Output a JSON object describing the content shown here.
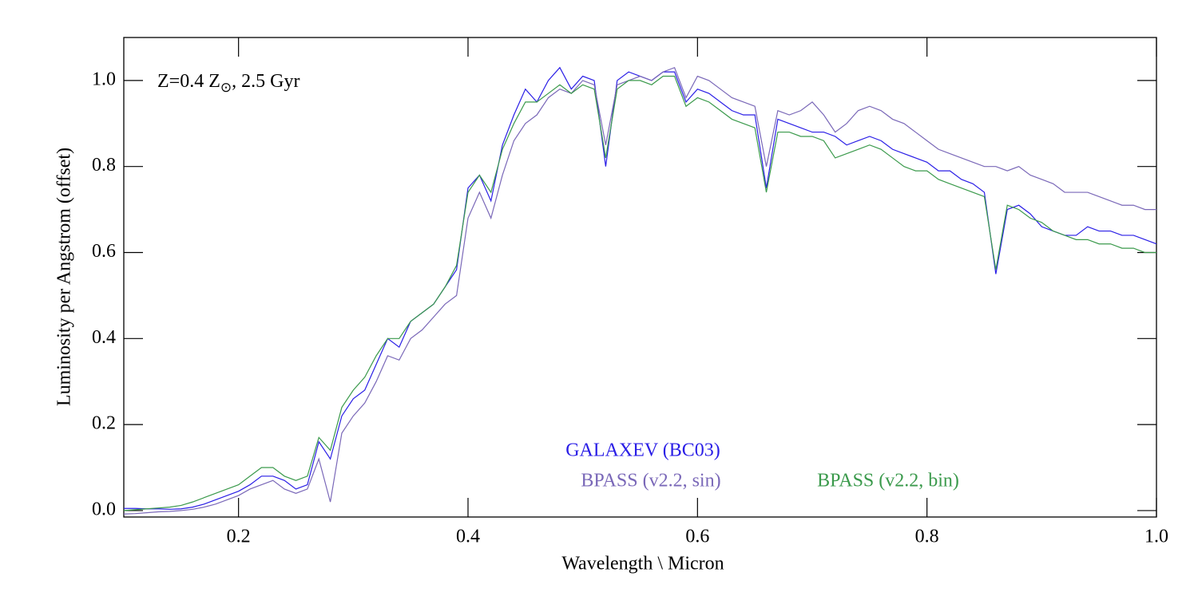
{
  "chart_data": {
    "type": "line",
    "annotation": {
      "main": "Z=0.4 Z",
      "sub": "⊙",
      "rest": ",  2.5 Gyr"
    },
    "xlabel": "Wavelength \\ Micron",
    "ylabel": "Luminosity per Angstrom (offset)",
    "xlim": [
      0.1,
      1.0
    ],
    "ylim": [
      -0.015,
      1.1
    ],
    "xticks": [
      0.2,
      0.4,
      0.6,
      0.8,
      {
        "value": 1.0,
        "label": "1.0"
      }
    ],
    "yticks": [
      {
        "value": 0,
        "label": "0.0"
      },
      0.2,
      0.4,
      0.6,
      0.8,
      {
        "value": 1.0,
        "label": "1.0"
      }
    ],
    "x": [
      0.1,
      0.11,
      0.12,
      0.13,
      0.14,
      0.15,
      0.16,
      0.17,
      0.18,
      0.19,
      0.2,
      0.21,
      0.22,
      0.23,
      0.24,
      0.25,
      0.26,
      0.27,
      0.28,
      0.29,
      0.3,
      0.31,
      0.32,
      0.33,
      0.34,
      0.35,
      0.36,
      0.37,
      0.38,
      0.39,
      0.4,
      0.41,
      0.42,
      0.43,
      0.44,
      0.45,
      0.46,
      0.47,
      0.48,
      0.49,
      0.5,
      0.51,
      0.52,
      0.53,
      0.54,
      0.55,
      0.56,
      0.57,
      0.58,
      0.59,
      0.6,
      0.61,
      0.62,
      0.63,
      0.64,
      0.65,
      0.66,
      0.67,
      0.68,
      0.69,
      0.7,
      0.71,
      0.72,
      0.73,
      0.74,
      0.75,
      0.76,
      0.77,
      0.78,
      0.79,
      0.8,
      0.81,
      0.82,
      0.83,
      0.84,
      0.85,
      0.86,
      0.87,
      0.88,
      0.89,
      0.9,
      0.91,
      0.92,
      0.93,
      0.94,
      0.95,
      0.96,
      0.97,
      0.98,
      0.99,
      1.0
    ],
    "series": [
      {
        "name": "GALAXEV (BC03)",
        "color": "#2a1ee6",
        "values": [
          0.005,
          0.005,
          0.004,
          0.004,
          0.003,
          0.004,
          0.008,
          0.015,
          0.025,
          0.035,
          0.045,
          0.06,
          0.08,
          0.08,
          0.07,
          0.05,
          0.06,
          0.16,
          0.12,
          0.22,
          0.26,
          0.28,
          0.34,
          0.4,
          0.38,
          0.44,
          0.46,
          0.48,
          0.52,
          0.56,
          0.75,
          0.78,
          0.72,
          0.85,
          0.92,
          0.98,
          0.95,
          1.0,
          1.03,
          0.98,
          1.01,
          1.0,
          0.8,
          1.0,
          1.02,
          1.01,
          1.0,
          1.02,
          1.02,
          0.95,
          0.98,
          0.97,
          0.95,
          0.93,
          0.92,
          0.92,
          0.75,
          0.91,
          0.9,
          0.89,
          0.88,
          0.88,
          0.87,
          0.85,
          0.86,
          0.87,
          0.86,
          0.84,
          0.83,
          0.82,
          0.81,
          0.79,
          0.79,
          0.77,
          0.76,
          0.74,
          0.55,
          0.7,
          0.71,
          0.69,
          0.66,
          0.65,
          0.64,
          0.64,
          0.66,
          0.65,
          0.65,
          0.64,
          0.64,
          0.63,
          0.62
        ]
      },
      {
        "name": "BPASS (v2.2, sin)",
        "color": "#7a68b8",
        "values": [
          -0.008,
          -0.007,
          -0.005,
          -0.003,
          -0.002,
          0.0,
          0.003,
          0.008,
          0.015,
          0.025,
          0.035,
          0.05,
          0.06,
          0.07,
          0.05,
          0.04,
          0.05,
          0.12,
          0.02,
          0.18,
          0.22,
          0.25,
          0.3,
          0.36,
          0.35,
          0.4,
          0.42,
          0.45,
          0.48,
          0.5,
          0.68,
          0.74,
          0.68,
          0.78,
          0.86,
          0.9,
          0.92,
          0.96,
          0.98,
          0.97,
          1.0,
          0.99,
          0.85,
          0.99,
          1.0,
          1.01,
          1.0,
          1.02,
          1.03,
          0.96,
          1.01,
          1.0,
          0.98,
          0.96,
          0.95,
          0.94,
          0.8,
          0.93,
          0.92,
          0.93,
          0.95,
          0.92,
          0.88,
          0.9,
          0.93,
          0.94,
          0.93,
          0.91,
          0.9,
          0.88,
          0.86,
          0.84,
          0.83,
          0.82,
          0.81,
          0.8,
          0.8,
          0.79,
          0.8,
          0.78,
          0.77,
          0.76,
          0.74,
          0.74,
          0.74,
          0.73,
          0.72,
          0.71,
          0.71,
          0.7,
          0.7
        ]
      },
      {
        "name": "BPASS (v2.2, bin)",
        "color": "#3b9a4c",
        "values": [
          0.0,
          0.002,
          0.004,
          0.006,
          0.008,
          0.012,
          0.02,
          0.03,
          0.04,
          0.05,
          0.06,
          0.08,
          0.1,
          0.1,
          0.08,
          0.07,
          0.08,
          0.17,
          0.14,
          0.24,
          0.28,
          0.31,
          0.36,
          0.4,
          0.4,
          0.44,
          0.46,
          0.48,
          0.52,
          0.57,
          0.74,
          0.78,
          0.74,
          0.84,
          0.9,
          0.95,
          0.95,
          0.97,
          0.99,
          0.97,
          0.99,
          0.98,
          0.82,
          0.98,
          1.0,
          1.0,
          0.99,
          1.01,
          1.01,
          0.94,
          0.96,
          0.95,
          0.93,
          0.91,
          0.9,
          0.89,
          0.74,
          0.88,
          0.88,
          0.87,
          0.87,
          0.86,
          0.82,
          0.83,
          0.84,
          0.85,
          0.84,
          0.82,
          0.8,
          0.79,
          0.79,
          0.77,
          0.76,
          0.75,
          0.74,
          0.73,
          0.56,
          0.71,
          0.7,
          0.68,
          0.67,
          0.65,
          0.64,
          0.63,
          0.63,
          0.62,
          0.62,
          0.61,
          0.61,
          0.6,
          0.6
        ]
      }
    ]
  }
}
